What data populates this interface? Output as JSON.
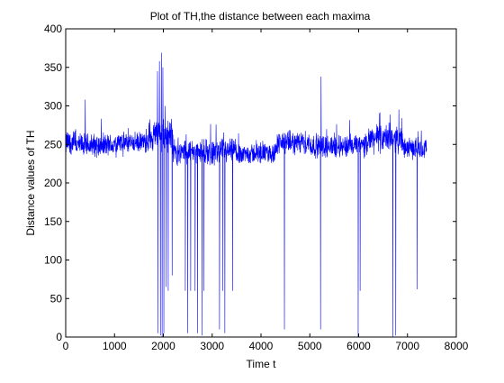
{
  "chart_data": {
    "type": "line",
    "title": "Plot of TH,the distance between each maxima",
    "xlabel": "Time t",
    "ylabel": "Distance values of TH",
    "xlim": [
      0,
      8000
    ],
    "ylim": [
      0,
      400
    ],
    "x_ticks": [
      "0",
      "1000",
      "2000",
      "3000",
      "4000",
      "5000",
      "6000",
      "7000",
      "8000"
    ],
    "y_ticks": [
      "0",
      "50",
      "100",
      "150",
      "200",
      "250",
      "300",
      "350",
      "400"
    ],
    "grid": false,
    "series": [
      {
        "color": "#0000ff",
        "x_range": [
          0,
          7400
        ],
        "baseline_mean": 248,
        "baseline_low": 215,
        "baseline_high": 290,
        "segments": [
          {
            "x0": 0,
            "x1": 200,
            "mean": 252,
            "spread": 20
          },
          {
            "x0": 200,
            "x1": 1000,
            "mean": 249,
            "spread": 18
          },
          {
            "x0": 1000,
            "x1": 1700,
            "mean": 252,
            "spread": 16
          },
          {
            "x0": 1700,
            "x1": 2200,
            "mean": 262,
            "spread": 26
          },
          {
            "x0": 2200,
            "x1": 3500,
            "mean": 240,
            "spread": 20
          },
          {
            "x0": 3500,
            "x1": 4300,
            "mean": 238,
            "spread": 16
          },
          {
            "x0": 4300,
            "x1": 5000,
            "mean": 252,
            "spread": 18
          },
          {
            "x0": 5000,
            "x1": 6200,
            "mean": 248,
            "spread": 18
          },
          {
            "x0": 6200,
            "x1": 6900,
            "mean": 258,
            "spread": 22
          },
          {
            "x0": 6900,
            "x1": 7400,
            "mean": 245,
            "spread": 16
          }
        ],
        "spikes_up": [
          {
            "x": 400,
            "y": 308
          },
          {
            "x": 1880,
            "y": 345
          },
          {
            "x": 1920,
            "y": 358
          },
          {
            "x": 1960,
            "y": 369
          },
          {
            "x": 1990,
            "y": 350
          },
          {
            "x": 2040,
            "y": 300
          },
          {
            "x": 4480,
            "y": 335
          },
          {
            "x": 5230,
            "y": 338
          },
          {
            "x": 6700,
            "y": 312
          },
          {
            "x": 7200,
            "y": 303
          }
        ],
        "spikes_down": [
          {
            "x": 1890,
            "y": 5
          },
          {
            "x": 1940,
            "y": 2
          },
          {
            "x": 1975,
            "y": 0
          },
          {
            "x": 2010,
            "y": 5
          },
          {
            "x": 2060,
            "y": 65
          },
          {
            "x": 2100,
            "y": 60
          },
          {
            "x": 2180,
            "y": 80
          },
          {
            "x": 2450,
            "y": 60
          },
          {
            "x": 2500,
            "y": 5
          },
          {
            "x": 2560,
            "y": 60
          },
          {
            "x": 2650,
            "y": 60
          },
          {
            "x": 2700,
            "y": 5
          },
          {
            "x": 2790,
            "y": 2
          },
          {
            "x": 2830,
            "y": 60
          },
          {
            "x": 3150,
            "y": 10
          },
          {
            "x": 3220,
            "y": 60
          },
          {
            "x": 3260,
            "y": 5
          },
          {
            "x": 3420,
            "y": 60
          },
          {
            "x": 4480,
            "y": 10
          },
          {
            "x": 5220,
            "y": 10
          },
          {
            "x": 5990,
            "y": 0
          },
          {
            "x": 6030,
            "y": 60
          },
          {
            "x": 6700,
            "y": 0
          },
          {
            "x": 6760,
            "y": 2
          },
          {
            "x": 7200,
            "y": 62
          }
        ]
      }
    ]
  }
}
